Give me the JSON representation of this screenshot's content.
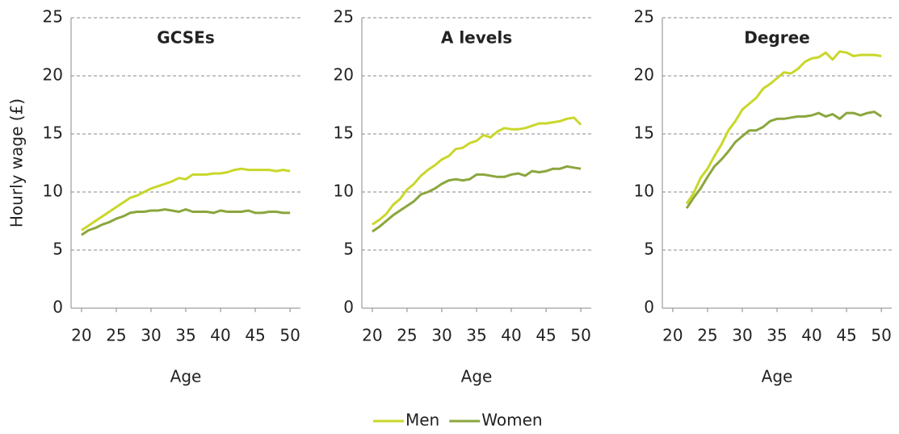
{
  "chart_data": [
    {
      "type": "line",
      "title": "GCSEs",
      "y_label": "Hourly wage (£)",
      "x_label": "Age",
      "x": [
        20,
        21,
        22,
        23,
        24,
        25,
        26,
        27,
        28,
        29,
        30,
        31,
        32,
        33,
        34,
        35,
        36,
        37,
        38,
        39,
        40,
        41,
        42,
        43,
        44,
        45,
        46,
        47,
        48,
        49,
        50
      ],
      "series": [
        {
          "name": "Men",
          "color": "#c9d72a",
          "values": [
            6.7,
            7.1,
            7.5,
            7.9,
            8.3,
            8.7,
            9.1,
            9.5,
            9.7,
            10.0,
            10.3,
            10.5,
            10.7,
            10.9,
            11.2,
            11.1,
            11.5,
            11.5,
            11.5,
            11.6,
            11.6,
            11.7,
            11.9,
            12.0,
            11.9,
            11.9,
            11.9,
            11.9,
            11.8,
            11.9,
            11.8
          ]
        },
        {
          "name": "Women",
          "color": "#8ba63e",
          "values": [
            6.3,
            6.7,
            6.9,
            7.2,
            7.4,
            7.7,
            7.9,
            8.2,
            8.3,
            8.3,
            8.4,
            8.4,
            8.5,
            8.4,
            8.3,
            8.5,
            8.3,
            8.3,
            8.3,
            8.2,
            8.4,
            8.3,
            8.3,
            8.3,
            8.4,
            8.2,
            8.2,
            8.3,
            8.3,
            8.2,
            8.2
          ]
        }
      ],
      "xlim": [
        18.5,
        51.5
      ],
      "xticks": [
        20,
        25,
        30,
        35,
        40,
        45,
        50
      ],
      "ylim": [
        0,
        25
      ],
      "yticks": [
        0,
        5,
        10,
        15,
        20,
        25
      ],
      "grid": true,
      "legend": "bottom"
    },
    {
      "type": "line",
      "title": "A levels",
      "x_label": "Age",
      "x": [
        20,
        21,
        22,
        23,
        24,
        25,
        26,
        27,
        28,
        29,
        30,
        31,
        32,
        33,
        34,
        35,
        36,
        37,
        38,
        39,
        40,
        41,
        42,
        43,
        44,
        45,
        46,
        47,
        48,
        49,
        50
      ],
      "series": [
        {
          "name": "Men",
          "color": "#c9d72a",
          "values": [
            7.2,
            7.6,
            8.1,
            8.9,
            9.4,
            10.2,
            10.7,
            11.4,
            11.9,
            12.3,
            12.8,
            13.1,
            13.7,
            13.8,
            14.2,
            14.4,
            14.9,
            14.7,
            15.2,
            15.5,
            15.4,
            15.4,
            15.5,
            15.7,
            15.9,
            15.9,
            16.0,
            16.1,
            16.3,
            16.4,
            15.8
          ]
        },
        {
          "name": "Women",
          "color": "#8ba63e",
          "values": [
            6.6,
            7.0,
            7.5,
            8.0,
            8.4,
            8.8,
            9.2,
            9.8,
            10.0,
            10.3,
            10.7,
            11.0,
            11.1,
            11.0,
            11.1,
            11.5,
            11.5,
            11.4,
            11.3,
            11.3,
            11.5,
            11.6,
            11.4,
            11.8,
            11.7,
            11.8,
            12.0,
            12.0,
            12.2,
            12.1,
            12.0
          ]
        }
      ],
      "xlim": [
        18.5,
        51.5
      ],
      "xticks": [
        20,
        25,
        30,
        35,
        40,
        45,
        50
      ],
      "ylim": [
        0,
        25
      ],
      "yticks": [
        0,
        5,
        10,
        15,
        20,
        25
      ],
      "grid": true
    },
    {
      "type": "line",
      "title": "Degree",
      "x_label": "Age",
      "x": [
        22,
        23,
        24,
        25,
        26,
        27,
        28,
        29,
        30,
        31,
        32,
        33,
        34,
        35,
        36,
        37,
        38,
        39,
        40,
        41,
        42,
        43,
        44,
        45,
        46,
        47,
        48,
        49,
        50
      ],
      "series": [
        {
          "name": "Men",
          "color": "#c9d72a",
          "values": [
            9.0,
            9.9,
            11.2,
            12.0,
            13.1,
            14.1,
            15.3,
            16.1,
            17.1,
            17.6,
            18.1,
            18.9,
            19.3,
            19.8,
            20.3,
            20.2,
            20.6,
            21.2,
            21.5,
            21.6,
            22.0,
            21.4,
            22.1,
            22.0,
            21.7,
            21.8,
            21.8,
            21.8,
            21.7
          ]
        },
        {
          "name": "Women",
          "color": "#8ba63e",
          "values": [
            8.6,
            9.5,
            10.3,
            11.3,
            12.2,
            12.8,
            13.5,
            14.3,
            14.8,
            15.3,
            15.3,
            15.6,
            16.1,
            16.3,
            16.3,
            16.4,
            16.5,
            16.5,
            16.6,
            16.8,
            16.5,
            16.7,
            16.3,
            16.8,
            16.8,
            16.6,
            16.8,
            16.9,
            16.5
          ]
        }
      ],
      "xlim": [
        18.5,
        51.5
      ],
      "xticks": [
        20,
        25,
        30,
        35,
        40,
        45,
        50
      ],
      "ylim": [
        0,
        25
      ],
      "yticks": [
        0,
        5,
        10,
        15,
        20,
        25
      ],
      "grid": true
    }
  ]
}
